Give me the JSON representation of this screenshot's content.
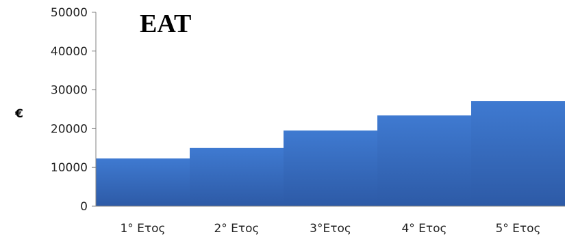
{
  "chart_data": {
    "type": "bar",
    "title": "EAT",
    "ylabel": "€",
    "xlabel": "",
    "categories": [
      "1° Ετος",
      "2° Ετος",
      "3°Ετος",
      "4° Ετος",
      "5° Ετος"
    ],
    "values": [
      12300,
      15000,
      19500,
      23400,
      27100
    ],
    "ylim": [
      0,
      50000
    ],
    "yticks": [
      0,
      10000,
      20000,
      30000,
      40000,
      50000
    ],
    "grid": false,
    "bar_color": "#3A6FC0",
    "legend": "none"
  }
}
